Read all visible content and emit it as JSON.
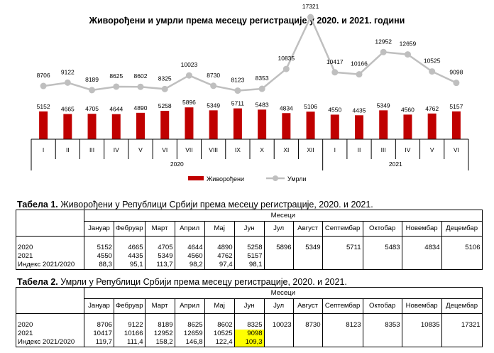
{
  "chart_title": "Живорођени и умрли према месецу регистрације у 2020.  и 2021. години",
  "chart_data": {
    "type": "bar+line",
    "categories": [
      "I",
      "II",
      "III",
      "IV",
      "V",
      "VI",
      "VII",
      "VIII",
      "IX",
      "X",
      "XI",
      "XII",
      "I",
      "II",
      "III",
      "IV",
      "V",
      "VI"
    ],
    "groups": [
      {
        "label": "2020",
        "count": 12
      },
      {
        "label": "2021",
        "count": 6
      }
    ],
    "series": [
      {
        "name": "Живорођени",
        "type": "bar",
        "color": "#c00000",
        "values": [
          5152,
          4665,
          4705,
          4644,
          4890,
          5258,
          5896,
          5349,
          5711,
          5483,
          4834,
          5106,
          4550,
          4435,
          5349,
          4560,
          4762,
          5157
        ]
      },
      {
        "name": "Умрли",
        "type": "line",
        "color": "#bfbfbf",
        "values": [
          8706,
          9122,
          8189,
          8625,
          8602,
          8325,
          10023,
          8730,
          8123,
          8353,
          10835,
          17321,
          10417,
          10166,
          12952,
          12659,
          10525,
          9098
        ]
      }
    ],
    "legend_position": "bottom"
  },
  "table1": {
    "title_bold": "Табела 1.",
    "title_rest": " Живорођени у Републици Србији према месецу регистрације, 2020. и 2021.",
    "group_header": "Месеци",
    "months": [
      "Јануар",
      "Фебруар",
      "Март",
      "Април",
      "Мај",
      "Јун",
      "Јул",
      "Август",
      "Септембар",
      "Октобар",
      "Новембар",
      "Децембар"
    ],
    "rows": [
      {
        "label": "2020",
        "values": [
          "5152",
          "4665",
          "4705",
          "4644",
          "4890",
          "5258",
          "5896",
          "5349",
          "5711",
          "5483",
          "4834",
          "5106"
        ]
      },
      {
        "label": "2021",
        "values": [
          "4550",
          "4435",
          "5349",
          "4560",
          "4762",
          "5157",
          "",
          "",
          "",
          "",
          "",
          ""
        ]
      },
      {
        "label": "Индекс 2021/2020",
        "values": [
          "88,3",
          "95,1",
          "113,7",
          "98,2",
          "97,4",
          "98,1",
          "",
          "",
          "",
          "",
          "",
          ""
        ]
      }
    ]
  },
  "table2": {
    "title_bold": "Табела 2.",
    "title_rest": " Умрли у Републици Србији према месецу регистрације, 2020. и 2021.",
    "group_header": "Месеци",
    "months": [
      "Јануар",
      "Фебруар",
      "Март",
      "Април",
      "Мај",
      "Јун",
      "Јул",
      "Август",
      "Септембар",
      "Октобар",
      "Новембар",
      "Децембар"
    ],
    "rows": [
      {
        "label": "2020",
        "values": [
          "8706",
          "9122",
          "8189",
          "8625",
          "8602",
          "8325",
          "10023",
          "8730",
          "8123",
          "8353",
          "10835",
          "17321"
        ]
      },
      {
        "label": "2021",
        "values": [
          "10417",
          "10166",
          "12952",
          "12659",
          "10525",
          "9098",
          "",
          "",
          "",
          "",
          "",
          ""
        ]
      },
      {
        "label": "Индекс 2021/2020",
        "values": [
          "119,7",
          "111,4",
          "158,2",
          "146,8",
          "122,4",
          "109,3",
          "",
          "",
          "",
          "",
          "",
          ""
        ]
      }
    ],
    "highlight_color": "#ffff00"
  }
}
